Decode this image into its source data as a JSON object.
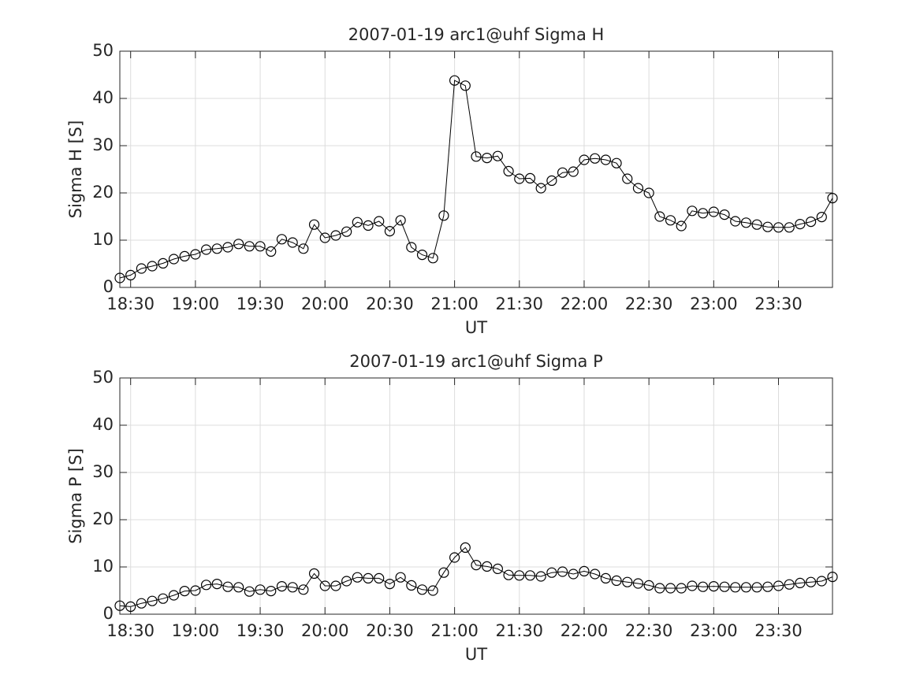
{
  "chart_data": [
    {
      "type": "line",
      "title": "2007-01-19  arc1@uhf Sigma H",
      "xlabel": "UT",
      "ylabel": "Sigma H [S]",
      "x": [
        "18:25",
        "18:30",
        "18:35",
        "18:40",
        "18:45",
        "18:50",
        "18:55",
        "19:00",
        "19:05",
        "19:10",
        "19:15",
        "19:20",
        "19:25",
        "19:30",
        "19:35",
        "19:40",
        "19:45",
        "19:50",
        "19:55",
        "20:00",
        "20:05",
        "20:10",
        "20:15",
        "20:20",
        "20:25",
        "20:30",
        "20:35",
        "20:40",
        "20:45",
        "20:50",
        "20:55",
        "21:00",
        "21:05",
        "21:10",
        "21:15",
        "21:20",
        "21:25",
        "21:30",
        "21:35",
        "21:40",
        "21:45",
        "21:50",
        "21:55",
        "22:00",
        "22:05",
        "22:10",
        "22:15",
        "22:20",
        "22:25",
        "22:30",
        "22:35",
        "22:40",
        "22:45",
        "22:50",
        "22:55",
        "23:00",
        "23:05",
        "23:10",
        "23:15",
        "23:20",
        "23:25",
        "23:30",
        "23:35",
        "23:40",
        "23:45",
        "23:50",
        "23:55"
      ],
      "values": [
        2.0,
        2.6,
        4.0,
        4.5,
        5.1,
        6.0,
        6.6,
        7.0,
        8.0,
        8.2,
        8.5,
        9.2,
        8.7,
        8.7,
        7.6,
        10.2,
        9.5,
        8.2,
        13.3,
        10.5,
        11.0,
        11.8,
        13.8,
        13.1,
        14.0,
        11.9,
        14.2,
        8.5,
        6.9,
        6.2,
        15.2,
        43.8,
        42.7,
        27.7,
        27.4,
        27.8,
        24.6,
        23.0,
        23.1,
        21.0,
        22.6,
        24.3,
        24.5,
        27.0,
        27.3,
        27.0,
        26.3,
        23.0,
        21.0,
        20.0,
        15.0,
        14.2,
        13.0,
        16.2,
        15.7,
        16.0,
        15.4,
        14.0,
        13.7,
        13.3,
        12.8,
        12.7,
        12.7,
        13.4,
        13.9,
        14.9,
        18.9
      ],
      "color": "#000000",
      "marker": "circle",
      "xlim": [
        "18:25",
        "23:55"
      ],
      "xticks": [
        "18:30",
        "19:00",
        "19:30",
        "20:00",
        "20:30",
        "21:00",
        "21:30",
        "22:00",
        "22:30",
        "23:00",
        "23:30"
      ],
      "ylim": [
        0,
        50
      ],
      "yticks": [
        0,
        10,
        20,
        30,
        40,
        50
      ],
      "grid": true
    },
    {
      "type": "line",
      "title": "2007-01-19  arc1@uhf Sigma P",
      "xlabel": "UT",
      "ylabel": "Sigma P [S]",
      "x": [
        "18:25",
        "18:30",
        "18:35",
        "18:40",
        "18:45",
        "18:50",
        "18:55",
        "19:00",
        "19:05",
        "19:10",
        "19:15",
        "19:20",
        "19:25",
        "19:30",
        "19:35",
        "19:40",
        "19:45",
        "19:50",
        "19:55",
        "20:00",
        "20:05",
        "20:10",
        "20:15",
        "20:20",
        "20:25",
        "20:30",
        "20:35",
        "20:40",
        "20:45",
        "20:50",
        "20:55",
        "21:00",
        "21:05",
        "21:10",
        "21:15",
        "21:20",
        "21:25",
        "21:30",
        "21:35",
        "21:40",
        "21:45",
        "21:50",
        "21:55",
        "22:00",
        "22:05",
        "22:10",
        "22:15",
        "22:20",
        "22:25",
        "22:30",
        "22:35",
        "22:40",
        "22:45",
        "22:50",
        "22:55",
        "23:00",
        "23:05",
        "23:10",
        "23:15",
        "23:20",
        "23:25",
        "23:30",
        "23:35",
        "23:40",
        "23:45",
        "23:50",
        "23:55"
      ],
      "values": [
        1.8,
        1.6,
        2.3,
        2.8,
        3.3,
        4.0,
        4.9,
        5.0,
        6.2,
        6.4,
        5.8,
        5.7,
        4.8,
        5.2,
        4.9,
        5.9,
        5.7,
        5.2,
        8.6,
        6.0,
        6.0,
        7.0,
        7.8,
        7.6,
        7.6,
        6.4,
        7.8,
        6.1,
        5.2,
        5.0,
        8.8,
        12.0,
        14.1,
        10.4,
        10.1,
        9.6,
        8.3,
        8.2,
        8.2,
        8.0,
        8.8,
        9.0,
        8.5,
        9.1,
        8.5,
        7.6,
        7.1,
        6.8,
        6.5,
        6.1,
        5.5,
        5.5,
        5.5,
        6.0,
        5.8,
        5.9,
        5.8,
        5.7,
        5.7,
        5.7,
        5.8,
        6.0,
        6.3,
        6.6,
        6.8,
        7.0,
        7.9
      ],
      "color": "#000000",
      "marker": "circle",
      "xlim": [
        "18:25",
        "23:55"
      ],
      "xticks": [
        "18:30",
        "19:00",
        "19:30",
        "20:00",
        "20:30",
        "21:00",
        "21:30",
        "22:00",
        "22:30",
        "23:00",
        "23:30"
      ],
      "ylim": [
        0,
        50
      ],
      "yticks": [
        0,
        10,
        20,
        30,
        40,
        50
      ],
      "grid": true
    }
  ]
}
